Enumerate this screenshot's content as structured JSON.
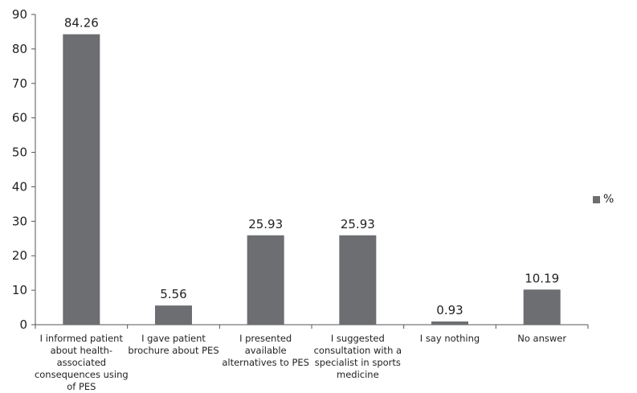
{
  "chart_data": {
    "type": "bar",
    "categories": [
      "I informed patient about health-associated consequences using of PES",
      "I gave patient brochure about PES",
      "I presented  available alternatives to PES",
      "I suggested consultation with a specialist in sports medicine",
      "I say nothing",
      "No answer"
    ],
    "category_lines": [
      [
        "I informed patient",
        "about health-",
        "associated",
        "consequences using",
        "of PES"
      ],
      [
        "I gave patient",
        "brochure about PES"
      ],
      [
        "I presented  available",
        "alternatives to PES"
      ],
      [
        "I suggested",
        "consultation with a",
        "specialist in sports",
        "medicine"
      ],
      [
        "I say nothing"
      ],
      [
        "No answer"
      ]
    ],
    "series": [
      {
        "name": "%",
        "values": [
          84.26,
          5.56,
          25.93,
          25.93,
          0.93,
          10.19
        ]
      }
    ],
    "data_labels": [
      "84.26",
      "5.56",
      "25.93",
      "25.93",
      "0.93",
      "10.19"
    ],
    "ylim": [
      0,
      90
    ],
    "yticks": [
      "0",
      "10",
      "20",
      "30",
      "40",
      "50",
      "60",
      "70",
      "80",
      "90"
    ],
    "grid": false,
    "legend_position": "right",
    "bar_color": "#6d6e71"
  }
}
